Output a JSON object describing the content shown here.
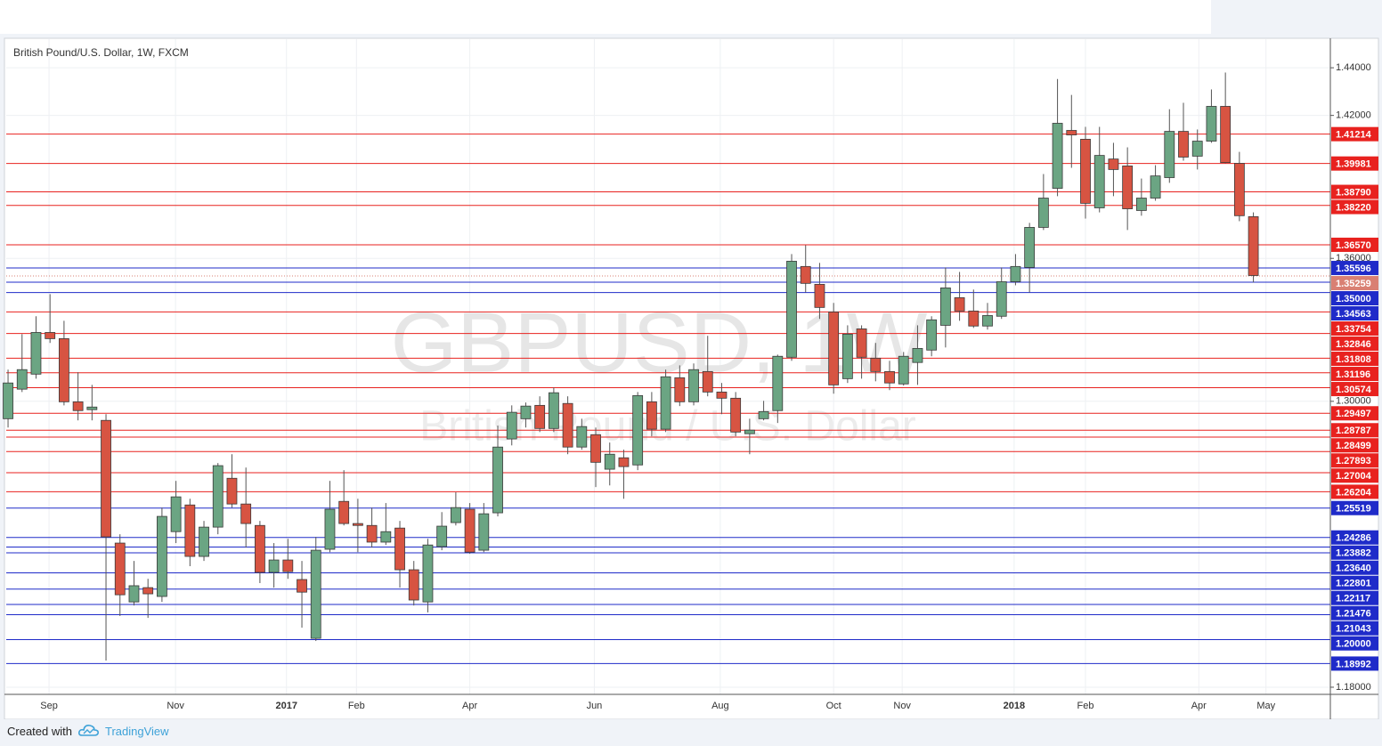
{
  "chart_data": {
    "type": "candlestick",
    "title": "British Pound/U.S. Dollar, 1W, FXCM",
    "watermark": {
      "symbol": "GBPUSD, 1W",
      "description": "British Pound / U.S. Dollar"
    },
    "up_color": "#6ba583",
    "down_color": "#d75442",
    "open": [
      1.2927,
      1.3051,
      1.3114,
      1.3289,
      1.3263,
      1.2998,
      1.2965,
      1.292,
      1.2405,
      1.2158,
      1.2218,
      1.2181,
      1.2453,
      1.2565,
      1.2349,
      1.2472,
      1.2677,
      1.2569,
      1.2479,
      1.2282,
      1.2334,
      1.2252,
      1.2005,
      1.2379,
      1.258,
      1.2487,
      1.2479,
      1.2409,
      1.2468,
      1.2293,
      1.2158,
      1.239,
      1.2491,
      1.2547,
      1.2375,
      1.2532,
      1.2842,
      1.2927,
      1.2983,
      1.2886,
      1.2991,
      1.2808,
      1.286,
      1.2715,
      1.2763,
      1.2733,
      1.2998,
      1.2883,
      1.3099,
      1.2998,
      1.3125,
      1.3039,
      1.3013,
      1.2864,
      1.2927,
      1.2961,
      1.3185,
      1.3566,
      1.3491,
      1.3375,
      1.3095,
      1.3304,
      1.3181,
      1.3125,
      1.3073,
      1.3163,
      1.3215,
      1.3319,
      1.3435,
      1.3379,
      1.3316,
      1.3357,
      1.3502,
      1.3562,
      1.373,
      1.3894,
      1.4137,
      1.41,
      1.3812,
      1.4017,
      1.3988,
      1.3801,
      1.3853,
      1.3939,
      1.4133,
      1.4029,
      1.4092,
      1.4238,
      1.3999,
      1.3775
    ],
    "high": [
      1.3133,
      1.3282,
      1.3357,
      1.345,
      1.3338,
      1.3122,
      1.3069,
      1.2946,
      1.2442,
      1.233,
      1.2255,
      1.2554,
      1.2666,
      1.2591,
      1.2498,
      1.2741,
      1.2778,
      1.2722,
      1.2498,
      1.2405,
      1.2423,
      1.233,
      1.2431,
      1.2666,
      1.2711,
      1.2591,
      1.2554,
      1.2573,
      1.2498,
      1.233,
      1.2423,
      1.2535,
      1.2618,
      1.2573,
      1.2573,
      1.2898,
      1.2983,
      1.2995,
      1.3021,
      1.3058,
      1.3021,
      1.2927,
      1.289,
      1.2827,
      1.2797,
      1.3039,
      1.3039,
      1.3133,
      1.3151,
      1.3159,
      1.3275,
      1.3077,
      1.3039,
      1.2927,
      1.3002,
      1.3196,
      1.3618,
      1.3655,
      1.3581,
      1.3413,
      1.3319,
      1.3319,
      1.3245,
      1.317,
      1.3207,
      1.3319,
      1.3357,
      1.3562,
      1.3543,
      1.3469,
      1.3413,
      1.3562,
      1.3618,
      1.3749,
      1.3954,
      1.4353,
      1.4286,
      1.4152,
      1.4152,
      1.4085,
      1.4066,
      1.3935,
      1.3991,
      1.4226,
      1.4253,
      1.4141,
      1.4309,
      1.438,
      1.4047,
      1.3793
    ],
    "low": [
      1.289,
      1.3039,
      1.3095,
      1.3245,
      1.2983,
      1.292,
      1.292,
      1.1912,
      1.2099,
      1.2143,
      1.2091,
      1.2158,
      1.2405,
      1.2308,
      1.233,
      1.2442,
      1.2554,
      1.2386,
      1.2237,
      1.2218,
      1.2255,
      1.205,
      1.1994,
      1.2367,
      1.2479,
      1.2367,
      1.2386,
      1.2397,
      1.2218,
      1.2143,
      1.2114,
      1.2375,
      1.2479,
      1.236,
      1.2367,
      1.2517,
      1.2815,
      1.289,
      1.2871,
      1.2871,
      1.2778,
      1.2797,
      1.264,
      1.2647,
      1.2591,
      1.2711,
      1.2853,
      1.2871,
      1.298,
      1.2983,
      1.3021,
      1.2946,
      1.2853,
      1.2778,
      1.292,
      1.2909,
      1.317,
      1.3457,
      1.3346,
      1.3032,
      1.3077,
      1.3095,
      1.3084,
      1.3047,
      1.3066,
      1.3069,
      1.3189,
      1.3226,
      1.3338,
      1.3308,
      1.3301,
      1.3346,
      1.3487,
      1.3457,
      1.3719,
      1.3861,
      1.398,
      1.3767,
      1.3793,
      1.3861,
      1.3719,
      1.3779,
      1.3842,
      1.3917,
      1.401,
      1.3973,
      1.4085,
      1.3999,
      1.3756,
      1.3499
    ],
    "close": [
      1.3077,
      1.3133,
      1.3289,
      1.3263,
      1.2998,
      1.2961,
      1.2976,
      1.2431,
      1.2188,
      1.2226,
      1.2192,
      1.2517,
      1.2599,
      1.2349,
      1.2472,
      1.273,
      1.2569,
      1.2487,
      1.2282,
      1.2334,
      1.2285,
      1.2199,
      1.2375,
      1.2547,
      1.2487,
      1.2479,
      1.2409,
      1.2453,
      1.2293,
      1.2166,
      1.2397,
      1.2476,
      1.2554,
      1.2367,
      1.2528,
      1.2808,
      1.2954,
      1.298,
      1.2886,
      1.3036,
      1.2808,
      1.2894,
      1.2744,
      1.2778,
      1.2726,
      1.3024,
      1.2883,
      1.3103,
      1.2998,
      1.3133,
      1.3039,
      1.3013,
      1.2871,
      1.2879,
      1.2957,
      1.3189,
      1.3588,
      1.3495,
      1.3394,
      1.3069,
      1.3282,
      1.3185,
      1.3125,
      1.3077,
      1.3189,
      1.3222,
      1.3342,
      1.3476,
      1.3379,
      1.3316,
      1.336,
      1.3502,
      1.3566,
      1.373,
      1.3853,
      1.4167,
      1.4118,
      1.3831,
      1.4032,
      1.3973,
      1.3808,
      1.3853,
      1.3946,
      1.4133,
      1.4025,
      1.4092,
      1.4238,
      1.4002,
      1.3779,
      1.3528
    ],
    "xlim": [
      -0.13,
      94.5
    ],
    "xticks": [
      {
        "value": 2.93,
        "label": "Sep"
      },
      {
        "value": 11.97,
        "label": "Nov"
      },
      {
        "value": 19.9,
        "label": "2017"
      },
      {
        "value": 24.9,
        "label": "Feb"
      },
      {
        "value": 33.0,
        "label": "Apr"
      },
      {
        "value": 41.9,
        "label": "Jun"
      },
      {
        "value": 50.9,
        "label": "Aug"
      },
      {
        "value": 59.0,
        "label": "Oct"
      },
      {
        "value": 63.9,
        "label": "Nov"
      },
      {
        "value": 71.9,
        "label": "2018"
      },
      {
        "value": 77.0,
        "label": "Feb"
      },
      {
        "value": 85.1,
        "label": "Apr"
      },
      {
        "value": 89.9,
        "label": "May"
      }
    ],
    "ylim": [
      1.177,
      1.452
    ],
    "yticks": [
      {
        "value": 1.44,
        "label": "1.44000"
      },
      {
        "value": 1.42,
        "label": "1.42000"
      },
      {
        "value": 1.36,
        "label": "1.36000"
      },
      {
        "value": 1.3,
        "label": "1.30000"
      },
      {
        "value": 1.18,
        "label": "1.18000"
      }
    ],
    "grid": true,
    "levels": [
      {
        "value": 1.41214,
        "color": "#e8221f"
      },
      {
        "value": 1.39981,
        "color": "#e8221f"
      },
      {
        "value": 1.3879,
        "label": "1.38790",
        "color": "#e8221f"
      },
      {
        "value": 1.3822,
        "label": "1.38220",
        "color": "#e8221f"
      },
      {
        "value": 1.3657,
        "label": "1.36570",
        "color": "#e8221f"
      },
      {
        "value": 1.35596,
        "color": "#1f2bc9"
      },
      {
        "value": 1.35,
        "label": "1.35000",
        "color": "#1f2bc9"
      },
      {
        "value": 1.34563,
        "color": "#1f2bc9"
      },
      {
        "value": 1.33754,
        "color": "#e8221f"
      },
      {
        "value": 1.32846,
        "color": "#e8221f"
      },
      {
        "value": 1.31808,
        "color": "#e8221f"
      },
      {
        "value": 1.31196,
        "color": "#e8221f"
      },
      {
        "value": 1.30574,
        "color": "#e8221f"
      },
      {
        "value": 1.29497,
        "color": "#e8221f"
      },
      {
        "value": 1.28787,
        "color": "#e8221f"
      },
      {
        "value": 1.28499,
        "color": "#e8221f"
      },
      {
        "value": 1.27893,
        "color": "#e8221f"
      },
      {
        "value": 1.27004,
        "color": "#e8221f"
      },
      {
        "value": 1.26204,
        "color": "#e8221f"
      },
      {
        "value": 1.25519,
        "color": "#1f2bc9"
      },
      {
        "value": 1.24286,
        "color": "#1f2bc9"
      },
      {
        "value": 1.23882,
        "color": "#1f2bc9"
      },
      {
        "value": 1.2364,
        "label": "1.23640",
        "color": "#1f2bc9"
      },
      {
        "value": 1.22801,
        "color": "#1f2bc9"
      },
      {
        "value": 1.22117,
        "color": "#1f2bc9"
      },
      {
        "value": 1.21476,
        "color": "#1f2bc9"
      },
      {
        "value": 1.21043,
        "color": "#1f2bc9"
      },
      {
        "value": 1.2,
        "label": "1.20000",
        "color": "#1f2bc9"
      },
      {
        "value": 1.18992,
        "color": "#1f2bc9"
      }
    ],
    "last_price": {
      "value": 1.35259,
      "color": "#d98073"
    }
  },
  "footer": {
    "created_with": "Created with",
    "brand": "TradingView"
  }
}
